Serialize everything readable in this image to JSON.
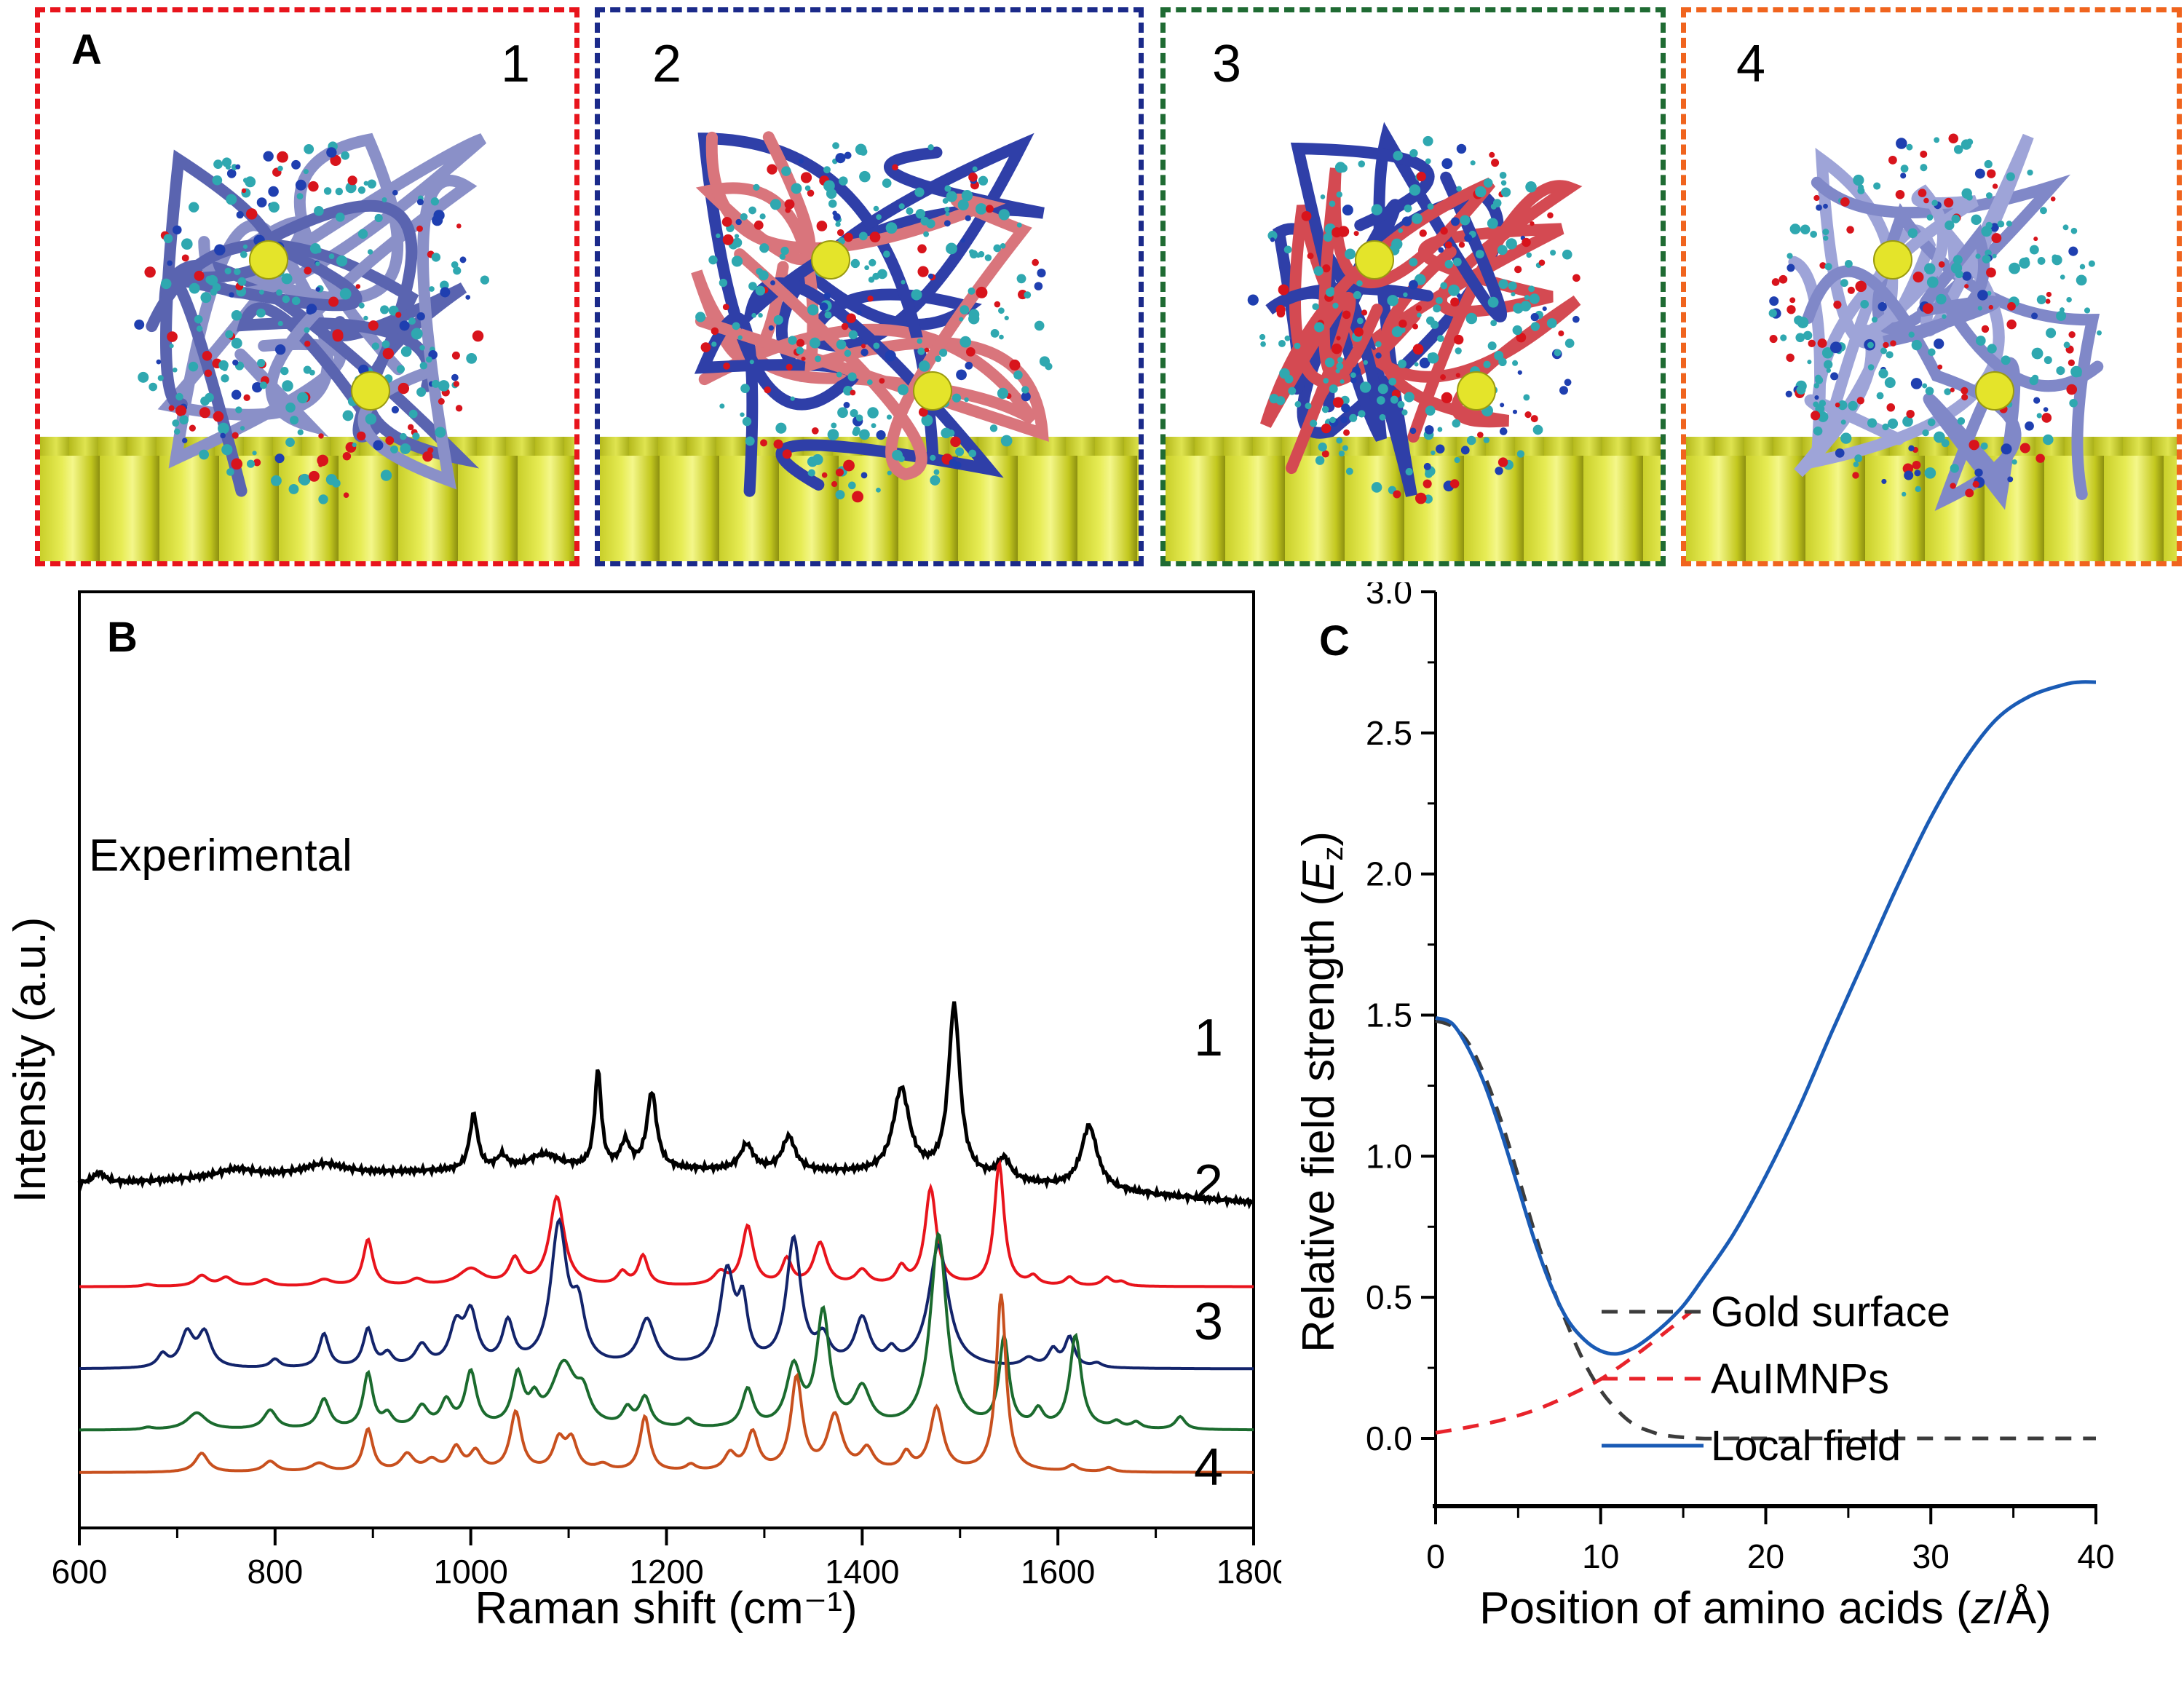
{
  "panel_a": {
    "label": "A",
    "boxes": [
      {
        "number": "1",
        "border_color": "#e8141c"
      },
      {
        "number": "2",
        "border_color": "#1b2a8a"
      },
      {
        "number": "3",
        "border_color": "#1f6b33"
      },
      {
        "number": "4",
        "border_color": "#f0641e"
      }
    ]
  },
  "chart_data": [
    {
      "panel_label": "B",
      "type": "line",
      "title": "",
      "xlabel": "Raman shift (cm⁻¹)",
      "ylabel": "Intensity (a.u.)",
      "xlim": [
        600,
        1800
      ],
      "x_ticks": [
        600,
        800,
        1000,
        1200,
        1400,
        1600,
        1800
      ],
      "y_ticks": [],
      "grid": false,
      "series": [
        {
          "name": "Experimental",
          "label": "Experimental",
          "color": "#000000",
          "baseline_start": 0.62,
          "baseline_end": 0.3,
          "offset": 6.2,
          "peaks": [
            [
              620,
              0.25,
              8
            ],
            [
              760,
              0.2,
              25
            ],
            [
              850,
              0.25,
              25
            ],
            [
              1003,
              1.3,
              5
            ],
            [
              1032,
              0.3,
              6
            ],
            [
              1075,
              0.35,
              20
            ],
            [
              1130,
              2.3,
              4
            ],
            [
              1158,
              0.6,
              6
            ],
            [
              1185,
              1.8,
              6
            ],
            [
              1282,
              0.6,
              8
            ],
            [
              1325,
              0.8,
              8
            ],
            [
              1440,
              2.0,
              10
            ],
            [
              1494,
              4.0,
              7
            ],
            [
              1545,
              0.5,
              8
            ],
            [
              1632,
              1.5,
              10
            ]
          ]
        },
        {
          "name": "1",
          "label": "1",
          "color": "#e8141c",
          "offset": 4.4,
          "peaks": [
            [
              670,
              0.05,
              6
            ],
            [
              725,
              0.25,
              8
            ],
            [
              750,
              0.2,
              8
            ],
            [
              790,
              0.15,
              8
            ],
            [
              850,
              0.15,
              10
            ],
            [
              895,
              1.1,
              6
            ],
            [
              945,
              0.15,
              8
            ],
            [
              1000,
              0.4,
              15
            ],
            [
              1045,
              0.6,
              7
            ],
            [
              1088,
              2.1,
              9
            ],
            [
              1155,
              0.3,
              6
            ],
            [
              1176,
              0.7,
              6
            ],
            [
              1255,
              0.3,
              8
            ],
            [
              1283,
              1.4,
              7
            ],
            [
              1323,
              0.6,
              6
            ],
            [
              1357,
              1.0,
              8
            ],
            [
              1400,
              0.35,
              8
            ],
            [
              1440,
              0.4,
              6
            ],
            [
              1470,
              2.3,
              7
            ],
            [
              1540,
              2.9,
              6
            ],
            [
              1575,
              0.2,
              6
            ],
            [
              1612,
              0.2,
              6
            ],
            [
              1650,
              0.2,
              6
            ],
            [
              1665,
              0.1,
              6
            ]
          ]
        },
        {
          "name": "2",
          "label": "2",
          "color": "#13246b",
          "offset": 2.45,
          "peaks": [
            [
              685,
              0.3,
              6
            ],
            [
              710,
              0.8,
              8
            ],
            [
              728,
              0.8,
              8
            ],
            [
              800,
              0.2,
              6
            ],
            [
              850,
              0.8,
              6
            ],
            [
              895,
              0.9,
              6
            ],
            [
              915,
              0.3,
              6
            ],
            [
              950,
              0.5,
              8
            ],
            [
              985,
              0.9,
              8
            ],
            [
              1000,
              1.2,
              8
            ],
            [
              1038,
              1.0,
              7
            ],
            [
              1090,
              3.3,
              10
            ],
            [
              1110,
              1.2,
              8
            ],
            [
              1180,
              1.1,
              10
            ],
            [
              1262,
              2.2,
              9
            ],
            [
              1278,
              1.3,
              6
            ],
            [
              1330,
              3.0,
              9
            ],
            [
              1360,
              0.6,
              8
            ],
            [
              1400,
              1.1,
              9
            ],
            [
              1430,
              0.3,
              6
            ],
            [
              1478,
              2.9,
              12
            ],
            [
              1570,
              0.2,
              8
            ],
            [
              1595,
              0.4,
              6
            ],
            [
              1612,
              0.7,
              6
            ],
            [
              1640,
              0.1,
              6
            ]
          ]
        },
        {
          "name": "3",
          "label": "3",
          "color": "#1b6b2e",
          "offset": 1.0,
          "peaks": [
            [
              670,
              0.05,
              6
            ],
            [
              720,
              0.4,
              12
            ],
            [
              795,
              0.45,
              8
            ],
            [
              850,
              0.7,
              7
            ],
            [
              895,
              1.3,
              6
            ],
            [
              915,
              0.3,
              6
            ],
            [
              950,
              0.5,
              8
            ],
            [
              975,
              0.6,
              7
            ],
            [
              1000,
              1.3,
              7
            ],
            [
              1048,
              1.2,
              7
            ],
            [
              1065,
              0.5,
              6
            ],
            [
              1095,
              1.5,
              15
            ],
            [
              1115,
              0.6,
              8
            ],
            [
              1160,
              0.4,
              6
            ],
            [
              1178,
              0.7,
              7
            ],
            [
              1222,
              0.2,
              6
            ],
            [
              1283,
              0.9,
              7
            ],
            [
              1330,
              1.4,
              9
            ],
            [
              1360,
              2.7,
              8
            ],
            [
              1400,
              0.9,
              10
            ],
            [
              1478,
              4.6,
              10
            ],
            [
              1545,
              2.1,
              6
            ],
            [
              1580,
              0.4,
              6
            ],
            [
              1618,
              2.2,
              7
            ],
            [
              1660,
              0.15,
              6
            ],
            [
              1680,
              0.15,
              6
            ],
            [
              1725,
              0.3,
              6
            ]
          ]
        },
        {
          "name": "4",
          "label": "4",
          "color": "#c8501e",
          "offset": 0.0,
          "peaks": [
            [
              725,
              0.45,
              8
            ],
            [
              795,
              0.25,
              8
            ],
            [
              845,
              0.2,
              10
            ],
            [
              895,
              1.0,
              6
            ],
            [
              935,
              0.4,
              8
            ],
            [
              960,
              0.25,
              8
            ],
            [
              985,
              0.55,
              7
            ],
            [
              1005,
              0.45,
              7
            ],
            [
              1046,
              1.4,
              7
            ],
            [
              1090,
              0.7,
              7
            ],
            [
              1103,
              0.7,
              7
            ],
            [
              1135,
              0.15,
              8
            ],
            [
              1178,
              1.3,
              6
            ],
            [
              1225,
              0.15,
              6
            ],
            [
              1265,
              0.4,
              7
            ],
            [
              1288,
              0.9,
              7
            ],
            [
              1333,
              2.2,
              7
            ],
            [
              1372,
              1.3,
              9
            ],
            [
              1405,
              0.5,
              8
            ],
            [
              1445,
              0.4,
              6
            ],
            [
              1476,
              1.5,
              8
            ],
            [
              1542,
              4.2,
              6
            ],
            [
              1615,
              0.15,
              6
            ],
            [
              1652,
              0.1,
              6
            ]
          ]
        }
      ]
    },
    {
      "panel_label": "C",
      "type": "line",
      "title": "",
      "xlabel": "Position of amino acids (z/Å)",
      "xlabel_parts": {
        "pre": "Position of amino acids (",
        "italic": "z",
        "post": "/Å)"
      },
      "ylabel": "Relative field strength (Ez)",
      "ylabel_parts": {
        "pre": "Relative field strength (",
        "italic": "E",
        "sub": "z",
        "post": ")"
      },
      "xlim": [
        0,
        40
      ],
      "ylim": [
        -0.24,
        3.0
      ],
      "x_ticks": [
        0,
        10,
        20,
        30,
        40
      ],
      "y_ticks": [
        0.0,
        0.5,
        1.0,
        1.5,
        2.0,
        2.5,
        3.0
      ],
      "y_tick_labels": [
        "0.0",
        "0.5",
        "1.0",
        "1.5",
        "2.0",
        "2.5",
        "3.0"
      ],
      "grid": false,
      "legend_position": "bottom-right",
      "series": [
        {
          "name": "Gold surface",
          "style": "dashed",
          "color": "#3c3c3c",
          "x": [
            0,
            1,
            2,
            3,
            4,
            5,
            6,
            7,
            8,
            9,
            10,
            11,
            12,
            13,
            14,
            16,
            18,
            20,
            25,
            30,
            35,
            40
          ],
          "y": [
            1.48,
            1.46,
            1.4,
            1.28,
            1.12,
            0.93,
            0.73,
            0.55,
            0.4,
            0.27,
            0.17,
            0.1,
            0.05,
            0.025,
            0.01,
            0.0,
            0.0,
            0.0,
            0.0,
            0.0,
            0.0,
            0.0
          ]
        },
        {
          "name": "AuIMNPs",
          "style": "dashed",
          "color": "#e8232b",
          "x": [
            0,
            2,
            4,
            6,
            8,
            10,
            12,
            14,
            15.5
          ],
          "y": [
            0.02,
            0.04,
            0.065,
            0.1,
            0.15,
            0.21,
            0.29,
            0.38,
            0.45
          ]
        },
        {
          "name": "Local field",
          "style": "solid",
          "color": "#1a5bb5",
          "x": [
            0,
            1,
            2,
            3,
            4,
            5,
            6,
            7,
            8,
            9,
            10,
            11,
            12,
            13,
            14,
            15,
            16,
            18,
            20,
            22,
            24,
            26,
            28,
            30,
            32,
            34,
            36,
            38,
            39,
            40
          ],
          "y": [
            1.49,
            1.47,
            1.38,
            1.25,
            1.08,
            0.89,
            0.7,
            0.54,
            0.42,
            0.35,
            0.31,
            0.3,
            0.32,
            0.36,
            0.41,
            0.47,
            0.55,
            0.72,
            0.93,
            1.17,
            1.44,
            1.7,
            1.96,
            2.2,
            2.4,
            2.55,
            2.63,
            2.67,
            2.68,
            2.68
          ]
        }
      ]
    }
  ]
}
